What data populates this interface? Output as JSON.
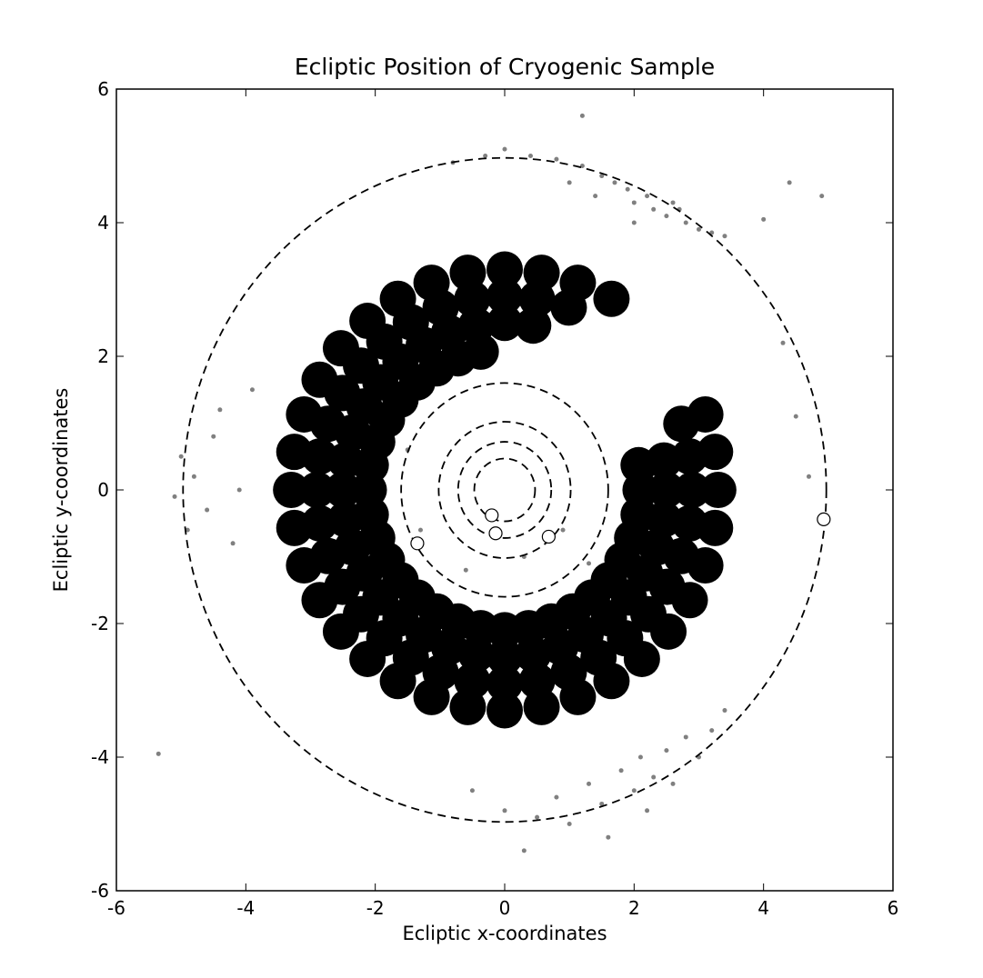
{
  "chart_data": {
    "type": "scatter",
    "title": "Ecliptic Position of Cryogenic Sample",
    "x_label": "Ecliptic x-coordinates",
    "y_label": "Ecliptic y-coordinates",
    "xlim": [
      -6,
      6
    ],
    "ylim": [
      -6,
      6
    ],
    "xticks": [
      -6,
      -4,
      -2,
      0,
      2,
      4,
      6
    ],
    "yticks": [
      -6,
      -4,
      -2,
      0,
      2,
      4,
      6
    ],
    "orbits": {
      "radii": [
        0.47,
        0.72,
        1.02,
        1.6,
        4.97
      ],
      "color": "#000000"
    },
    "series": [
      {
        "color": "#000000",
        "size": 20,
        "x": [
          -0.37,
          -0.72,
          -1.05,
          -1.35,
          -1.61,
          -1.82,
          -1.97,
          -2.07,
          -2.1,
          -2.07,
          -1.97,
          -1.82,
          -1.61,
          -1.35,
          -1.05,
          -0.72,
          -0.37,
          0,
          0.37,
          0.72,
          1.05,
          1.35,
          1.61,
          1.82,
          1.97,
          2.07,
          2.1,
          2.07,
          0.44,
          0,
          -0.44,
          -0.86,
          -1.25,
          -1.61,
          -1.92,
          -2.17,
          -2.35,
          -2.46,
          -2.5,
          -2.46,
          -2.35,
          -2.17,
          -1.92,
          -1.61,
          -1.25,
          -0.86,
          -0.44,
          0,
          0.44,
          0.86,
          1.25,
          1.61,
          1.92,
          2.17,
          2.35,
          2.46,
          2.5,
          2.46,
          0.99,
          0.5,
          0,
          -0.5,
          -0.99,
          -1.45,
          -1.86,
          -2.22,
          -2.51,
          -2.73,
          -2.86,
          -2.9,
          -2.86,
          -2.73,
          -2.51,
          -2.22,
          -1.86,
          -1.45,
          -0.99,
          -0.5,
          0,
          0.5,
          0.99,
          1.45,
          1.86,
          2.22,
          2.51,
          2.73,
          2.86,
          2.9,
          2.86,
          2.73,
          1.65,
          1.13,
          0.57,
          0,
          -0.57,
          -1.13,
          -1.65,
          -2.12,
          -2.53,
          -2.86,
          -3.1,
          -3.25,
          -3.3,
          -3.25,
          -3.1,
          -2.86,
          -2.53,
          -2.12,
          -1.65,
          -1.13,
          -0.57,
          0,
          0.57,
          1.13,
          1.65,
          2.12,
          2.53,
          2.86,
          3.1,
          3.25,
          3.3,
          3.25,
          3.1
        ],
        "values": [
          2.07,
          1.97,
          1.82,
          1.61,
          1.35,
          1.05,
          0.72,
          0.37,
          0,
          -0.37,
          -0.72,
          -1.05,
          -1.35,
          -1.61,
          -1.82,
          -1.97,
          -2.07,
          -2.1,
          -2.07,
          -1.97,
          -1.82,
          -1.61,
          -1.35,
          -1.05,
          -0.72,
          -0.37,
          0,
          0.37,
          2.46,
          2.5,
          2.46,
          2.35,
          2.17,
          1.92,
          1.61,
          1.25,
          0.86,
          0.44,
          0,
          -0.44,
          -0.86,
          -1.25,
          -1.61,
          -1.92,
          -2.17,
          -2.35,
          -2.46,
          -2.5,
          -2.46,
          -2.35,
          -2.17,
          -1.92,
          -1.61,
          -1.25,
          -0.86,
          -0.44,
          0,
          0.44,
          2.73,
          2.86,
          2.9,
          2.86,
          2.73,
          2.51,
          2.22,
          1.86,
          1.45,
          0.99,
          0.5,
          0,
          -0.5,
          -0.99,
          -1.45,
          -1.86,
          -2.22,
          -2.51,
          -2.73,
          -2.86,
          -2.9,
          -2.86,
          -2.73,
          -2.51,
          -2.22,
          -1.86,
          -1.45,
          -0.99,
          -0.5,
          0,
          0.5,
          0.99,
          2.86,
          3.1,
          3.25,
          3.3,
          3.25,
          3.1,
          2.86,
          2.53,
          2.12,
          1.65,
          1.13,
          0.57,
          0,
          -0.57,
          -1.13,
          -1.65,
          -2.12,
          -2.53,
          -2.86,
          -3.1,
          -3.25,
          -3.3,
          -3.25,
          -3.1,
          -2.86,
          -2.53,
          -2.12,
          -1.65,
          -1.13,
          -0.57,
          0,
          0.57,
          1.13
        ]
      },
      {
        "color": "#808080",
        "size": 2.5,
        "x": [
          -0.8,
          -0.3,
          0,
          0.4,
          0.8,
          1.2,
          1.5,
          1.7,
          1.9,
          2.0,
          2.2,
          2.3,
          2.5,
          2.6,
          2.8,
          3.0,
          3.2,
          1.0,
          1.4,
          2.0,
          2.7,
          3.4,
          1.2,
          -0.5,
          0,
          0.5,
          0.8,
          1.0,
          1.3,
          1.5,
          1.8,
          2.0,
          2.1,
          2.3,
          2.5,
          2.6,
          2.8,
          3.0,
          3.2,
          3.4,
          1.6,
          0.3,
          2.2,
          -5.0,
          -4.8,
          -4.6,
          -4.9,
          -4.5,
          -4.2,
          -4.4,
          -4.1,
          -5.1,
          -3.9,
          -5.35,
          -1.3,
          -0.6,
          0.3,
          0.9,
          1.3,
          -1.5,
          4.4,
          4.9,
          4.0,
          4.3,
          4.5,
          4.7
        ],
        "values": [
          4.9,
          5.0,
          5.1,
          5.0,
          4.95,
          4.85,
          4.7,
          4.6,
          4.5,
          4.3,
          4.4,
          4.2,
          4.1,
          4.3,
          4.0,
          3.9,
          3.85,
          4.6,
          4.4,
          4.0,
          4.2,
          3.8,
          5.6,
          -4.5,
          -4.8,
          -4.9,
          -4.6,
          -5.0,
          -4.4,
          -4.7,
          -4.2,
          -4.5,
          -4.0,
          -4.3,
          -3.9,
          -4.4,
          -3.7,
          -4.0,
          -3.6,
          -3.3,
          -5.2,
          -5.4,
          -4.8,
          0.5,
          0.2,
          -0.3,
          -0.6,
          0.8,
          -0.8,
          1.2,
          0,
          -0.1,
          1.5,
          -3.95,
          -0.6,
          -1.2,
          -1.0,
          -0.6,
          -1.1,
          0.6,
          4.6,
          4.4,
          4.05,
          2.2,
          1.1,
          0.2
        ]
      },
      {
        "color": "#ffffff",
        "edgecolor": "#000000",
        "size": 7,
        "x": [
          -0.2,
          -0.14,
          0.68,
          -1.35,
          4.93
        ],
        "values": [
          -0.38,
          -0.65,
          -0.7,
          -0.8,
          -0.44
        ]
      }
    ]
  }
}
